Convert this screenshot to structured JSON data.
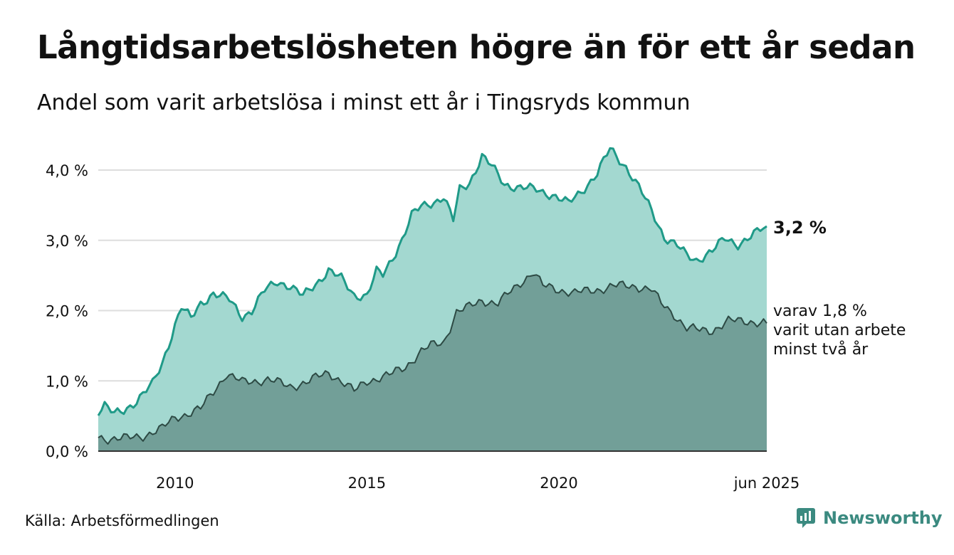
{
  "title": "Långtidsarbetslösheten högre än för ett år sedan",
  "subtitle": "Andel som varit arbetslösa i minst ett år i Tingsryds kommun",
  "source": "Källa: Arbetsförmedlingen",
  "brand": "Newsworthy",
  "colors": {
    "upper_line": "#1f9a88",
    "upper_fill": "#a3d8d0",
    "lower_line": "#2d4a44",
    "lower_fill": "#729f98",
    "grid": "#dddddd",
    "baseline": "#333333",
    "brand": "#3b8a80"
  },
  "chart_data": {
    "type": "area",
    "x_start": "2008-01",
    "x_end": "2025-06",
    "x_step": "month",
    "xlim": [
      "2008-01",
      "2025-06"
    ],
    "ylim": [
      0,
      4.0
    ],
    "grid": true,
    "y_ticks": [
      0,
      1,
      2,
      3,
      4
    ],
    "y_tick_labels": [
      "0,0 %",
      "1,0 %",
      "2,0 %",
      "3,0 %",
      "4,0 %"
    ],
    "x_ticks": [
      "2010-01",
      "2015-01",
      "2020-01",
      "2025-06"
    ],
    "x_tick_labels": [
      "2010",
      "2015",
      "2020",
      "jun 2025"
    ],
    "series": [
      {
        "key": "minst_ett_ar",
        "end_label": "3,2 %",
        "keyframes": [
          [
            "2008-01",
            0.57
          ],
          [
            "2008-03",
            0.65
          ],
          [
            "2008-06",
            0.52
          ],
          [
            "2008-09",
            0.58
          ],
          [
            "2009-01",
            0.72
          ],
          [
            "2009-06",
            0.95
          ],
          [
            "2009-09",
            1.25
          ],
          [
            "2010-01",
            1.8
          ],
          [
            "2010-03",
            2.05
          ],
          [
            "2010-06",
            1.88
          ],
          [
            "2010-09",
            2.1
          ],
          [
            "2011-01",
            2.25
          ],
          [
            "2011-06",
            2.15
          ],
          [
            "2011-10",
            1.92
          ],
          [
            "2012-01",
            2.0
          ],
          [
            "2012-05",
            2.28
          ],
          [
            "2012-09",
            2.42
          ],
          [
            "2013-01",
            2.35
          ],
          [
            "2013-05",
            2.2
          ],
          [
            "2013-09",
            2.38
          ],
          [
            "2014-01",
            2.58
          ],
          [
            "2014-05",
            2.45
          ],
          [
            "2014-09",
            2.22
          ],
          [
            "2015-01",
            2.22
          ],
          [
            "2015-04",
            2.55
          ],
          [
            "2015-06",
            2.5
          ],
          [
            "2015-09",
            2.75
          ],
          [
            "2015-12",
            3.02
          ],
          [
            "2016-03",
            3.35
          ],
          [
            "2016-06",
            3.48
          ],
          [
            "2016-10",
            3.55
          ],
          [
            "2017-01",
            3.62
          ],
          [
            "2017-04",
            3.28
          ],
          [
            "2017-06",
            3.72
          ],
          [
            "2017-09",
            3.82
          ],
          [
            "2018-01",
            4.2
          ],
          [
            "2018-04",
            4.05
          ],
          [
            "2018-08",
            3.8
          ],
          [
            "2019-01",
            3.75
          ],
          [
            "2019-06",
            3.72
          ],
          [
            "2019-11",
            3.65
          ],
          [
            "2020-04",
            3.52
          ],
          [
            "2020-08",
            3.7
          ],
          [
            "2021-01",
            3.95
          ],
          [
            "2021-05",
            4.3
          ],
          [
            "2021-10",
            4.05
          ],
          [
            "2022-02",
            3.75
          ],
          [
            "2022-06",
            3.42
          ],
          [
            "2022-10",
            3.05
          ],
          [
            "2023-02",
            2.92
          ],
          [
            "2023-05",
            2.78
          ],
          [
            "2023-08",
            2.72
          ],
          [
            "2024-01",
            2.85
          ],
          [
            "2024-05",
            3.02
          ],
          [
            "2024-09",
            2.95
          ],
          [
            "2025-01",
            3.05
          ],
          [
            "2025-06",
            3.2
          ]
        ]
      },
      {
        "key": "minst_tva_ar",
        "end_label": [
          "varav 1,8 %",
          "varit utan arbete",
          "minst två år"
        ],
        "keyframes": [
          [
            "2008-01",
            0.2
          ],
          [
            "2008-04",
            0.18
          ],
          [
            "2008-10",
            0.18
          ],
          [
            "2009-03",
            0.22
          ],
          [
            "2009-09",
            0.32
          ],
          [
            "2010-01",
            0.48
          ],
          [
            "2010-06",
            0.55
          ],
          [
            "2010-09",
            0.6
          ],
          [
            "2011-01",
            0.85
          ],
          [
            "2011-05",
            1.1
          ],
          [
            "2011-10",
            0.98
          ],
          [
            "2012-06",
            1.02
          ],
          [
            "2013-01",
            0.92
          ],
          [
            "2013-06",
            0.98
          ],
          [
            "2014-01",
            1.12
          ],
          [
            "2014-05",
            1.0
          ],
          [
            "2014-09",
            0.85
          ],
          [
            "2015-01",
            1.0
          ],
          [
            "2015-08",
            1.08
          ],
          [
            "2016-01",
            1.2
          ],
          [
            "2016-06",
            1.42
          ],
          [
            "2016-09",
            1.5
          ],
          [
            "2017-01",
            1.55
          ],
          [
            "2017-05",
            1.98
          ],
          [
            "2017-09",
            2.05
          ],
          [
            "2018-01",
            2.15
          ],
          [
            "2018-06",
            2.1
          ],
          [
            "2019-01",
            2.4
          ],
          [
            "2019-05",
            2.55
          ],
          [
            "2019-08",
            2.35
          ],
          [
            "2020-01",
            2.3
          ],
          [
            "2020-06",
            2.25
          ],
          [
            "2021-01",
            2.3
          ],
          [
            "2021-06",
            2.35
          ],
          [
            "2022-01",
            2.35
          ],
          [
            "2022-06",
            2.3
          ],
          [
            "2022-09",
            2.1
          ],
          [
            "2023-01",
            1.95
          ],
          [
            "2023-05",
            1.75
          ],
          [
            "2023-09",
            1.72
          ],
          [
            "2024-01",
            1.72
          ],
          [
            "2024-06",
            1.85
          ],
          [
            "2025-01",
            1.85
          ],
          [
            "2025-06",
            1.82
          ]
        ]
      }
    ]
  }
}
